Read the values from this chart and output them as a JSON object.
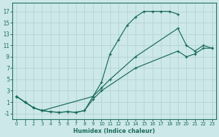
{
  "xlabel": "Humidex (Indice chaleur)",
  "bg_color": "#cce8e8",
  "grid_color": "#b8d4d4",
  "line_color": "#1a6b5a",
  "xlim": [
    -0.5,
    23.5
  ],
  "ylim": [
    -2,
    18.5
  ],
  "xticks": [
    0,
    1,
    2,
    3,
    4,
    5,
    6,
    7,
    8,
    9,
    10,
    11,
    12,
    13,
    14,
    15,
    16,
    17,
    18,
    19,
    20,
    21,
    22,
    23
  ],
  "yticks": [
    -1,
    1,
    3,
    5,
    7,
    9,
    11,
    13,
    15,
    17
  ],
  "curve1_x": [
    0,
    1,
    2,
    3,
    4,
    5,
    6,
    7,
    8,
    9,
    10,
    11,
    12,
    13,
    14,
    15,
    16,
    17,
    18,
    19
  ],
  "curve1_y": [
    2,
    1,
    0,
    -0.5,
    -0.7,
    -0.8,
    -0.7,
    -0.8,
    -0.5,
    2,
    4.5,
    9.5,
    12,
    14.5,
    16,
    17,
    17,
    17,
    17,
    16.5
  ],
  "curve2_x": [
    0,
    1,
    2,
    3,
    9,
    10,
    11,
    14,
    19,
    20,
    21,
    22,
    23
  ],
  "curve2_y": [
    2,
    1,
    0,
    -0.5,
    2,
    3.5,
    5,
    9,
    14,
    11,
    10,
    11,
    10.5
  ],
  "curve3_x": [
    0,
    1,
    2,
    3,
    4,
    5,
    6,
    7,
    8,
    9,
    10,
    14,
    19,
    20,
    21,
    22,
    23
  ],
  "curve3_y": [
    2,
    1,
    0,
    -0.5,
    -0.7,
    -0.8,
    -0.7,
    -0.8,
    -0.5,
    1.5,
    3,
    7,
    10,
    9,
    9.5,
    10.5,
    10.5
  ]
}
